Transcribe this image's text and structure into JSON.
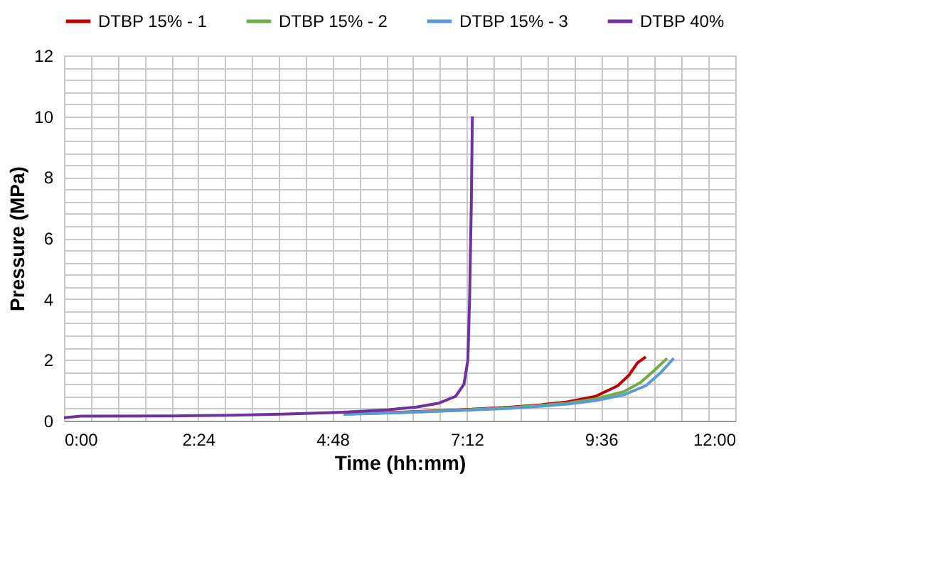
{
  "chart_data": {
    "type": "line",
    "xlabel": "Time (hh:mm)",
    "ylabel": "Pressure (MPa)",
    "xlim": [
      0,
      12
    ],
    "ylim": [
      0,
      12
    ],
    "xticks": [
      {
        "value": 0,
        "label": "0:00"
      },
      {
        "value": 0.48,
        "label": null
      },
      {
        "value": 0.96,
        "label": null
      },
      {
        "value": 1.44,
        "label": null
      },
      {
        "value": 1.92,
        "label": null
      },
      {
        "value": 2.4,
        "label": "2:24"
      },
      {
        "value": 2.88,
        "label": null
      },
      {
        "value": 3.36,
        "label": null
      },
      {
        "value": 3.84,
        "label": null
      },
      {
        "value": 4.32,
        "label": null
      },
      {
        "value": 4.8,
        "label": "4:48"
      },
      {
        "value": 5.28,
        "label": null
      },
      {
        "value": 5.76,
        "label": null
      },
      {
        "value": 6.24,
        "label": null
      },
      {
        "value": 6.72,
        "label": null
      },
      {
        "value": 7.2,
        "label": "7:12"
      },
      {
        "value": 7.68,
        "label": null
      },
      {
        "value": 8.16,
        "label": null
      },
      {
        "value": 8.64,
        "label": null
      },
      {
        "value": 9.12,
        "label": null
      },
      {
        "value": 9.6,
        "label": "9:36"
      },
      {
        "value": 10.08,
        "label": null
      },
      {
        "value": 10.56,
        "label": null
      },
      {
        "value": 11.04,
        "label": null
      },
      {
        "value": 11.52,
        "label": null
      },
      {
        "value": 12,
        "label": "12:00"
      }
    ],
    "yticks": [
      0,
      {
        "value": 0.4,
        "label": null
      },
      {
        "value": 0.8,
        "label": null
      },
      {
        "value": 1.2,
        "label": null
      },
      {
        "value": 1.6,
        "label": null
      },
      2,
      {
        "value": 2.4,
        "label": null
      },
      {
        "value": 2.8,
        "label": null
      },
      {
        "value": 3.2,
        "label": null
      },
      {
        "value": 3.6,
        "label": null
      },
      4,
      {
        "value": 4.4,
        "label": null
      },
      {
        "value": 4.8,
        "label": null
      },
      {
        "value": 5.2,
        "label": null
      },
      {
        "value": 5.6,
        "label": null
      },
      6,
      {
        "value": 6.4,
        "label": null
      },
      {
        "value": 6.8,
        "label": null
      },
      {
        "value": 7.2,
        "label": null
      },
      {
        "value": 7.6,
        "label": null
      },
      8,
      {
        "value": 8.4,
        "label": null
      },
      {
        "value": 8.8,
        "label": null
      },
      {
        "value": 9.2,
        "label": null
      },
      {
        "value": 9.6,
        "label": null
      },
      10,
      {
        "value": 10.4,
        "label": null
      },
      {
        "value": 10.8,
        "label": null
      },
      {
        "value": 11.2,
        "label": null
      },
      {
        "value": 11.6,
        "label": null
      },
      12
    ],
    "grid": true,
    "legend": "top",
    "marker": "none",
    "line_style": "solid",
    "series": [
      {
        "name": "DTBP 15% - 1",
        "color": "#c00000",
        "x": [
          5,
          6,
          7,
          8,
          8.5,
          9,
          9.5,
          9.9,
          10.1,
          10.25,
          10.4
        ],
        "values": [
          0.22,
          0.28,
          0.35,
          0.45,
          0.52,
          0.62,
          0.8,
          1.15,
          1.5,
          1.9,
          2.1
        ]
      },
      {
        "name": "DTBP 15% - 2",
        "color": "#70ad47",
        "x": [
          5,
          6,
          7,
          8,
          8.5,
          9,
          9.5,
          10,
          10.3,
          10.55,
          10.78
        ],
        "values": [
          0.22,
          0.27,
          0.34,
          0.43,
          0.5,
          0.58,
          0.72,
          0.95,
          1.25,
          1.65,
          2.05
        ]
      },
      {
        "name": "DTBP 15% - 3",
        "color": "#5b9bd5",
        "x": [
          5,
          6,
          7,
          8,
          8.5,
          9,
          9.5,
          10,
          10.4,
          10.65,
          10.9
        ],
        "values": [
          0.21,
          0.26,
          0.33,
          0.41,
          0.47,
          0.55,
          0.66,
          0.85,
          1.15,
          1.55,
          2.05
        ]
      },
      {
        "name": "DTBP 40%",
        "color": "#7030a0",
        "x": [
          0,
          0.3,
          2,
          3,
          4,
          5,
          5.8,
          6.3,
          6.7,
          7.0,
          7.15,
          7.22,
          7.25,
          7.28,
          7.3
        ],
        "values": [
          0.1,
          0.15,
          0.16,
          0.18,
          0.22,
          0.28,
          0.36,
          0.45,
          0.58,
          0.8,
          1.2,
          2.0,
          4.0,
          7.0,
          10.0
        ]
      }
    ]
  }
}
